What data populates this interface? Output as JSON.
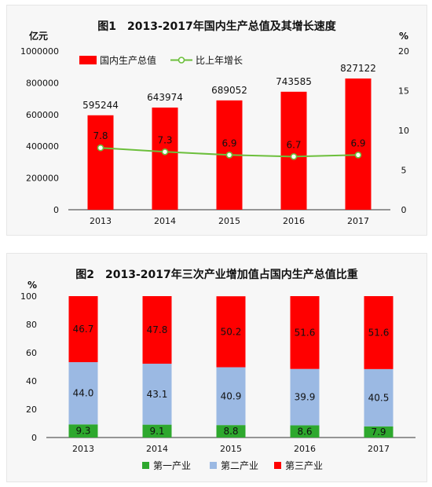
{
  "chart_data": [
    {
      "type": "bar",
      "title": "图1　2013-2017年国内生产总值及其增长速度",
      "categories": [
        "2013",
        "2014",
        "2015",
        "2016",
        "2017"
      ],
      "ylabel_left": "亿元",
      "ylabel_right": "%",
      "ylim_left": [
        0,
        1000000
      ],
      "ylim_right": [
        0,
        20
      ],
      "yticks_left": [
        "0",
        "200000",
        "400000",
        "600000",
        "800000",
        "1000000"
      ],
      "yticks_right": [
        "0",
        "5",
        "10",
        "15",
        "20"
      ],
      "legend_position": "top-left",
      "series": [
        {
          "name": "国内生产总值",
          "kind": "bar",
          "axis": "left",
          "color": "#ff0000",
          "values": [
            595244,
            643974,
            689052,
            743585,
            827122
          ],
          "labels": [
            "595244",
            "643974",
            "689052",
            "743585",
            "827122"
          ]
        },
        {
          "name": "比上年增长",
          "kind": "line",
          "axis": "right",
          "color": "#6cbf3c",
          "values": [
            7.8,
            7.3,
            6.9,
            6.7,
            6.9
          ],
          "labels": [
            "7.8",
            "7.3",
            "6.9",
            "6.7",
            "6.9"
          ]
        }
      ]
    },
    {
      "type": "bar",
      "stacked": true,
      "title": "图2　2013-2017年三次产业增加值占国内生产总值比重",
      "categories": [
        "2013",
        "2014",
        "2015",
        "2016",
        "2017"
      ],
      "ylabel": "%",
      "ylim": [
        0,
        100
      ],
      "yticks": [
        "0",
        "20",
        "40",
        "60",
        "80",
        "100"
      ],
      "legend_position": "bottom",
      "series": [
        {
          "name": "第一产业",
          "color": "#2ea82e",
          "values": [
            9.3,
            9.1,
            8.8,
            8.6,
            7.9
          ],
          "labels": [
            "9.3",
            "9.1",
            "8.8",
            "8.6",
            "7.9"
          ]
        },
        {
          "name": "第二产业",
          "color": "#9bb9e3",
          "values": [
            44.0,
            43.1,
            40.9,
            39.9,
            40.5
          ],
          "labels": [
            "44.0",
            "43.1",
            "40.9",
            "39.9",
            "40.5"
          ]
        },
        {
          "name": "第三产业",
          "color": "#ff0000",
          "values": [
            46.7,
            47.8,
            50.2,
            51.6,
            51.6
          ],
          "labels": [
            "46.7",
            "47.8",
            "50.2",
            "51.6",
            "51.6"
          ]
        }
      ]
    }
  ]
}
